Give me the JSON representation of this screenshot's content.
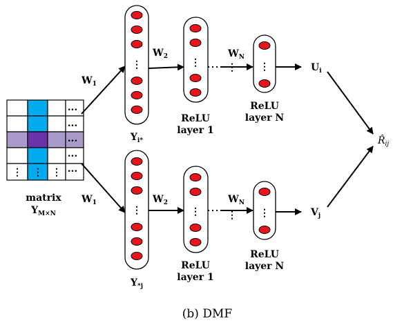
{
  "matrix": {
    "label_line1": "matrix",
    "label_line2_main": "Y",
    "label_line2_sub": "M×N",
    "ellipsis": "...",
    "vdots": "⋮",
    "colors": {
      "cell": "#ffffff",
      "column": "#00aaee",
      "row": "#a99bc9",
      "intersection": "#6a33aa",
      "border": "#000000"
    }
  },
  "top": {
    "w1": {
      "main": "W",
      "sub": "1"
    },
    "w2": {
      "main": "W",
      "sub": "2"
    },
    "wn": {
      "main": "W",
      "sub": "N"
    },
    "input_label": {
      "main": "Y",
      "sub": "i*"
    },
    "relu1_line1": "ReLU",
    "relu1_line2": "layer 1",
    "reluN_line1": "ReLU",
    "reluN_line2": "layer N",
    "output": {
      "main": "U",
      "sub": "i"
    }
  },
  "bottom": {
    "w1": {
      "main": "W",
      "sub": "1"
    },
    "w2": {
      "main": "W",
      "sub": "2"
    },
    "wn": {
      "main": "W",
      "sub": "N"
    },
    "input_label": {
      "main": "Y",
      "sub": "*j"
    },
    "relu1_line1": "ReLU",
    "relu1_line2": "layer 1",
    "reluN_line1": "ReLU",
    "reluN_line2": "layer N",
    "output": {
      "main": "V",
      "sub": "j"
    }
  },
  "result": {
    "main": "R̂",
    "sub": "ij"
  },
  "node_color": "#e8161c",
  "caption": "(b) DMF"
}
